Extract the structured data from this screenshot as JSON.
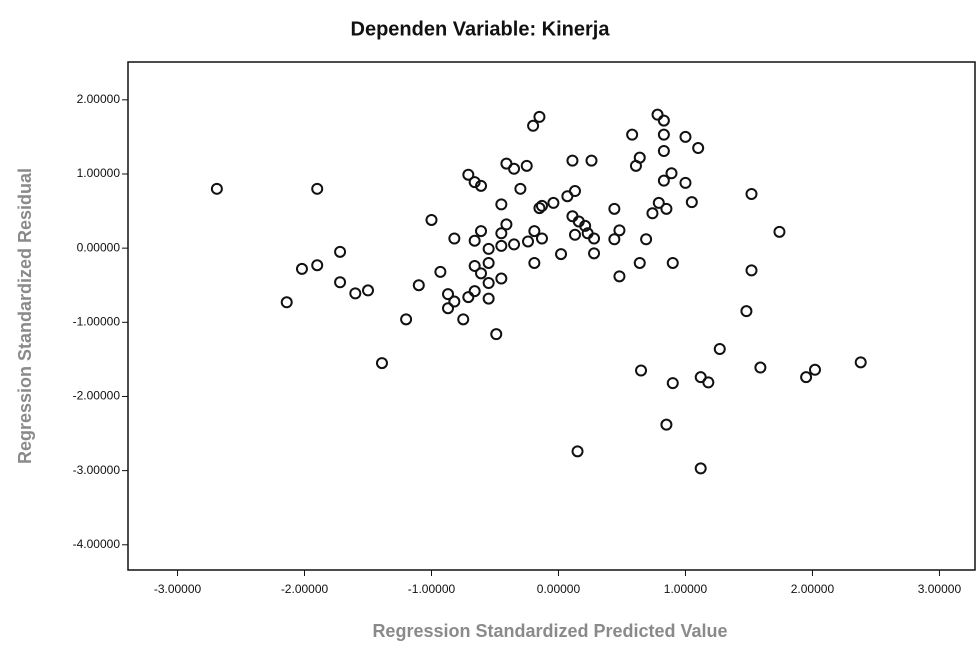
{
  "chart_data": {
    "type": "scatter",
    "title": "Dependen Variable: Kinerja",
    "x_label": "Regression Standardized Predicted Value",
    "y_label": "Regression Standardized Residual",
    "color": "#111111",
    "xlim": [
      -3.39,
      3.28
    ],
    "ylim": [
      -4.34,
      2.51
    ],
    "xticks": [
      {
        "value": -3,
        "label": "-3.00000"
      },
      {
        "value": -2,
        "label": "-2.00000"
      },
      {
        "value": -1,
        "label": "-1.00000"
      },
      {
        "value": 0,
        "label": "0.00000"
      },
      {
        "value": 1,
        "label": "1.00000"
      },
      {
        "value": 2,
        "label": "2.00000"
      },
      {
        "value": 3,
        "label": "3.00000"
      }
    ],
    "yticks": [
      {
        "value": 2,
        "label": "2.00000"
      },
      {
        "value": 1,
        "label": "1.00000"
      },
      {
        "value": 0,
        "label": "0.00000"
      },
      {
        "value": -1,
        "label": "-1.00000"
      },
      {
        "value": -2,
        "label": "-2.00000"
      },
      {
        "value": -3,
        "label": "-3.00000"
      },
      {
        "value": -4,
        "label": "-4.00000"
      }
    ],
    "x": [
      -2.69,
      -1.9,
      -2.14,
      -2.02,
      -1.9,
      -1.72,
      -1.72,
      -1.6,
      -1.5,
      -1.39,
      -1.2,
      -1.1,
      -1.0,
      -0.93,
      -0.87,
      -0.87,
      -0.82,
      -0.75,
      -0.82,
      -0.71,
      -0.66,
      -0.61,
      -0.66,
      -0.61,
      -0.66,
      -0.66,
      -0.61,
      -0.55,
      -0.55,
      -0.55,
      -0.55,
      -0.71,
      -0.49,
      -0.45,
      -0.45,
      -0.45,
      -0.45,
      -0.41,
      -0.35,
      -0.41,
      -0.35,
      -0.3,
      -0.25,
      -0.24,
      -0.2,
      -0.15,
      -0.19,
      -0.15,
      -0.13,
      -0.13,
      -0.19,
      -0.04,
      0.02,
      0.07,
      0.11,
      0.11,
      0.13,
      0.16,
      0.13,
      0.21,
      0.23,
      0.26,
      0.28,
      0.28,
      0.15,
      0.44,
      0.44,
      0.48,
      0.48,
      0.58,
      0.61,
      0.64,
      0.64,
      0.65,
      0.69,
      0.74,
      0.78,
      0.79,
      0.83,
      0.83,
      0.83,
      0.83,
      0.85,
      0.89,
      0.9,
      0.9,
      0.85,
      1.0,
      1.0,
      1.05,
      1.1,
      1.12,
      1.12,
      1.18,
      1.27,
      1.48,
      1.52,
      1.52,
      1.59,
      1.74,
      1.95,
      2.02,
      2.38
    ],
    "y": [
      0.8,
      0.8,
      -0.73,
      -0.28,
      -0.23,
      -0.05,
      -0.46,
      -0.61,
      -0.57,
      -1.55,
      -0.96,
      -0.5,
      0.38,
      -0.32,
      -0.62,
      -0.81,
      -0.72,
      -0.96,
      0.13,
      0.99,
      0.89,
      0.84,
      0.1,
      0.23,
      -0.24,
      -0.58,
      -0.34,
      -0.01,
      -0.2,
      -0.47,
      -0.68,
      -0.66,
      -1.16,
      -0.41,
      0.03,
      0.2,
      0.59,
      1.14,
      1.07,
      0.32,
      0.05,
      0.8,
      1.11,
      0.09,
      1.65,
      1.77,
      0.23,
      0.54,
      0.57,
      0.13,
      -0.2,
      0.61,
      -0.08,
      0.7,
      1.18,
      0.43,
      0.77,
      0.36,
      0.18,
      0.3,
      0.2,
      1.18,
      0.13,
      -0.07,
      -2.74,
      0.53,
      0.12,
      0.24,
      -0.38,
      1.53,
      1.11,
      1.22,
      -0.2,
      -1.65,
      0.12,
      0.47,
      1.8,
      0.61,
      1.72,
      1.53,
      1.31,
      0.91,
      0.53,
      1.01,
      -0.2,
      -1.82,
      -2.38,
      1.5,
      0.88,
      0.62,
      1.35,
      -2.97,
      -1.74,
      -1.81,
      -1.36,
      -0.85,
      0.73,
      -0.3,
      -1.61,
      0.22,
      -1.74,
      -1.64,
      -1.54
    ]
  }
}
